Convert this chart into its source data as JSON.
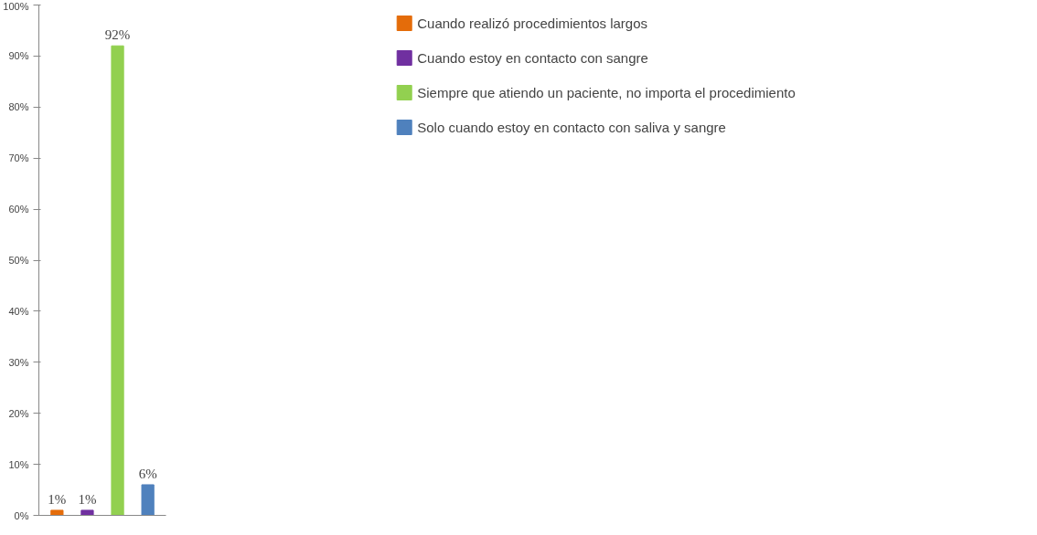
{
  "chart_data": {
    "type": "bar",
    "categories": [
      null,
      null,
      null,
      null
    ],
    "series": [
      {
        "name": "Cuando realizó procedimientos largos",
        "color": "#e46c0a",
        "values": [
          1,
          null,
          null,
          null
        ],
        "value_labels": [
          "1%",
          null,
          null,
          null
        ]
      },
      {
        "name": "Cuando estoy en contacto con sangre",
        "color": "#7030a0",
        "values": [
          null,
          1,
          null,
          null
        ],
        "value_labels": [
          null,
          "1%",
          null,
          null
        ]
      },
      {
        "name": "Siempre que atiendo un paciente, no importa el procedimiento",
        "color": "#92d050",
        "values": [
          null,
          null,
          92,
          null
        ],
        "value_labels": [
          null,
          null,
          "92%",
          null
        ]
      },
      {
        "name": "Solo cuando estoy en contacto con saliva y sangre",
        "color": "#4f81bd",
        "values": [
          null,
          null,
          null,
          6
        ],
        "value_labels": [
          null,
          null,
          null,
          "6%"
        ]
      }
    ],
    "ylim": [
      0,
      100
    ],
    "yticks": [
      {
        "value": 0,
        "label": "0%"
      },
      {
        "value": 10,
        "label": "10%"
      },
      {
        "value": 20,
        "label": "20%"
      },
      {
        "value": 30,
        "label": "30%"
      },
      {
        "value": 40,
        "label": "40%"
      },
      {
        "value": 50,
        "label": "50%"
      },
      {
        "value": 60,
        "label": "60%"
      },
      {
        "value": 70,
        "label": "70%"
      },
      {
        "value": 80,
        "label": "80%"
      },
      {
        "value": 90,
        "label": "90%"
      },
      {
        "value": 100,
        "label": "100%"
      }
    ],
    "grid": false,
    "legend": "right",
    "tick_labels": "y"
  }
}
